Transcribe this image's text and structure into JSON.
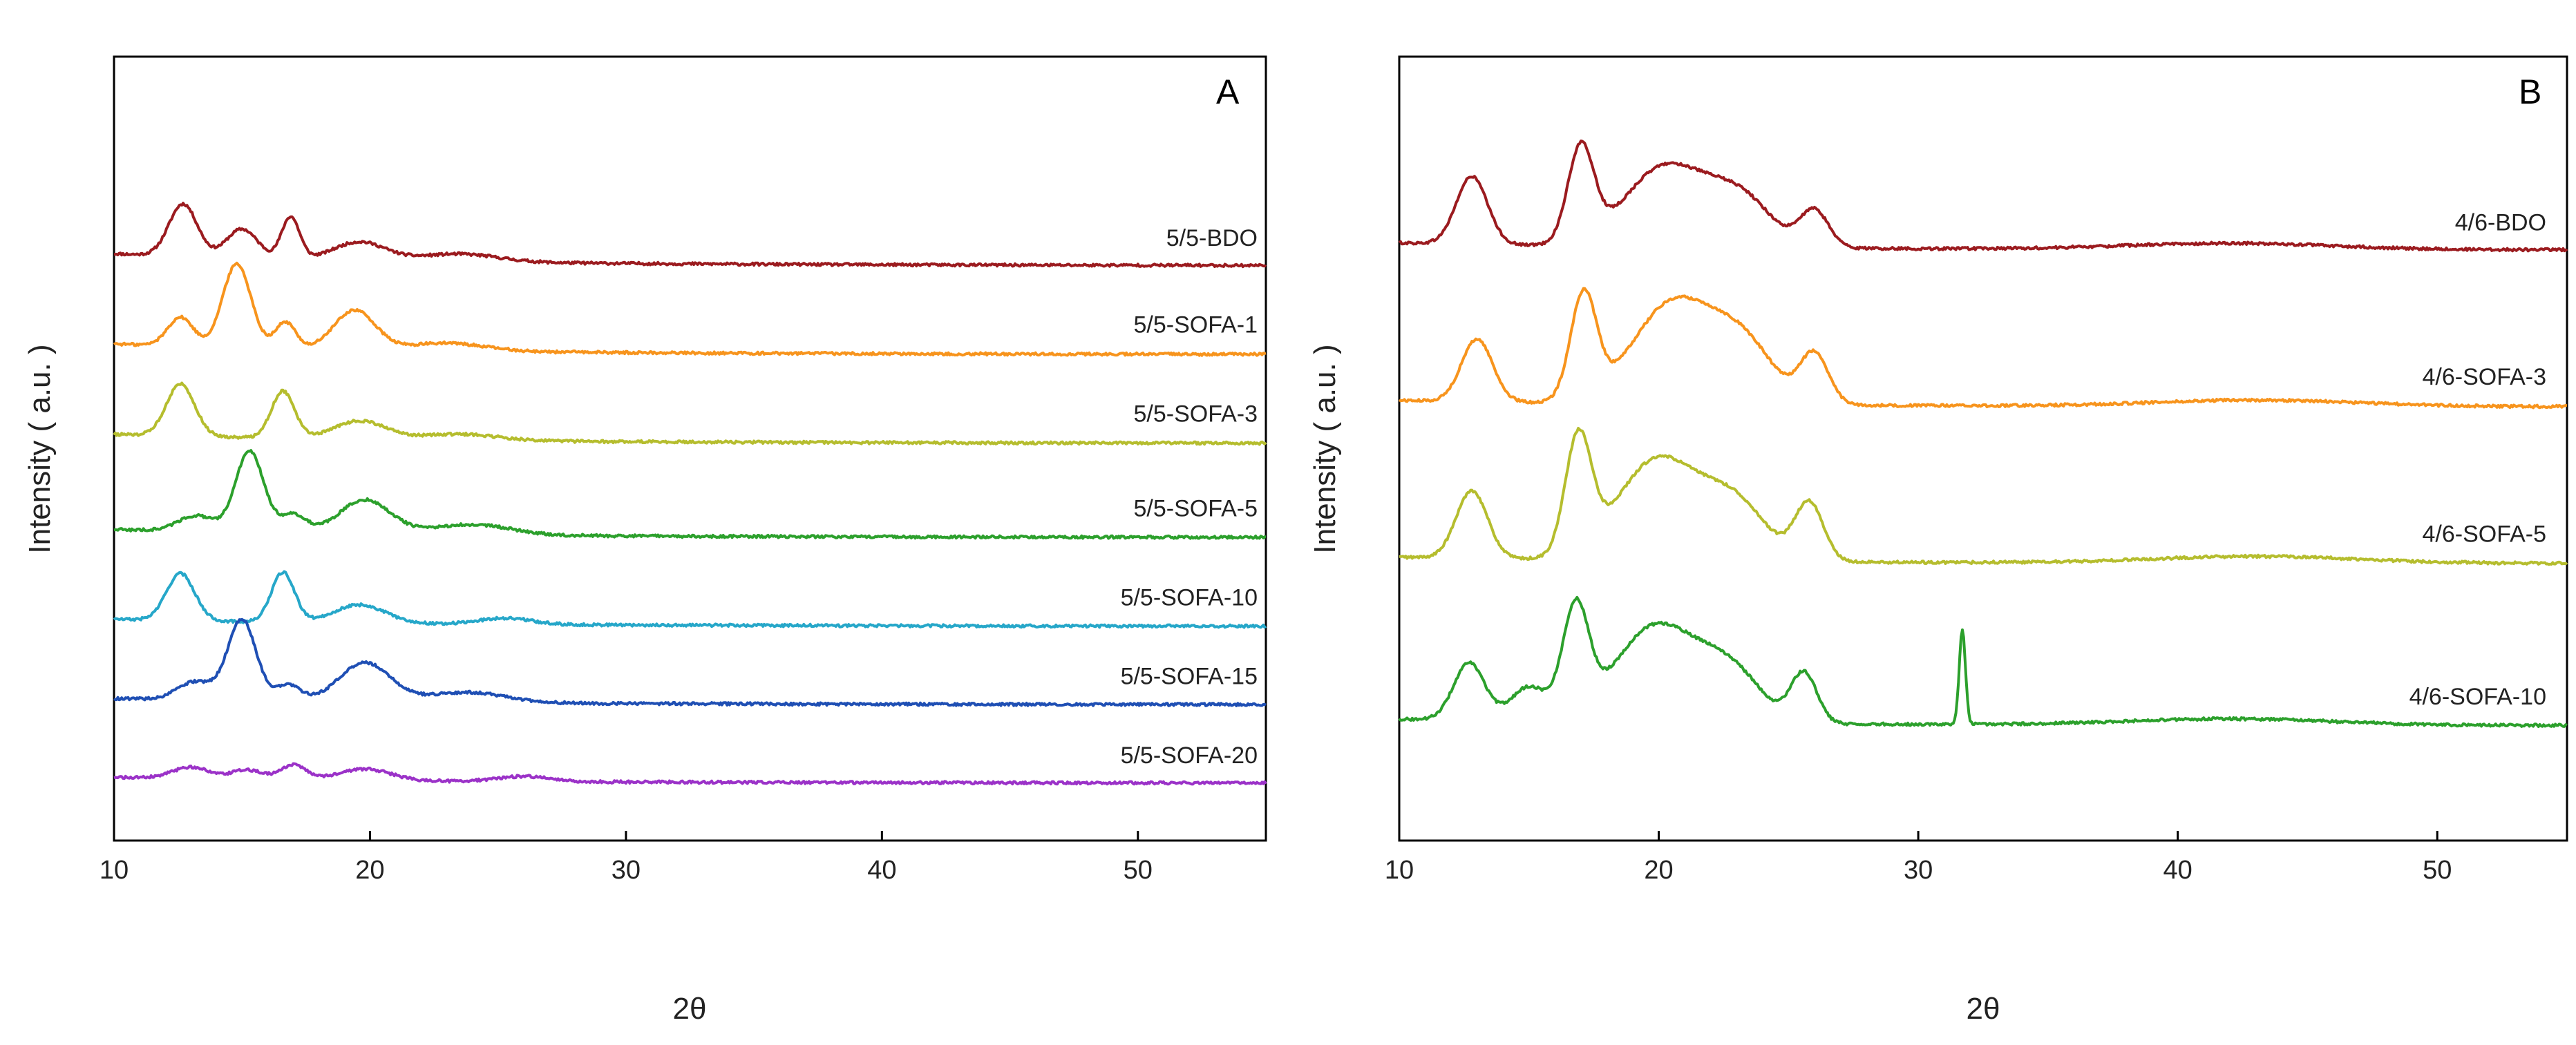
{
  "chart_data": [
    {
      "type": "line",
      "panel_label": "A",
      "xlabel": "2θ",
      "ylabel": "Intensity ( a.u. )",
      "xlim": [
        10,
        55
      ],
      "x_ticks": [
        "10",
        "20",
        "30",
        "40",
        "50"
      ],
      "y_ticks_shown": false,
      "series": [
        {
          "name": "5/5-BDO",
          "color": "#9b1b1f",
          "baseline": 0.92,
          "offset": 9.0,
          "peaks": [
            [
              12.7,
              1.0,
              0.55
            ],
            [
              15.0,
              0.55,
              0.6
            ],
            [
              16.9,
              0.8,
              0.35
            ],
            [
              19.6,
              0.35,
              1.0
            ],
            [
              23.5,
              0.15,
              1.5
            ]
          ]
        },
        {
          "name": "5/5-SOFA-1",
          "color": "#f7941d",
          "baseline": 0.82,
          "offset": 7.3,
          "peaks": [
            [
              12.6,
              0.55,
              0.5
            ],
            [
              14.8,
              1.6,
              0.55
            ],
            [
              16.7,
              0.5,
              0.4
            ],
            [
              19.4,
              0.75,
              0.8
            ],
            [
              23.0,
              0.15,
              1.5
            ]
          ]
        },
        {
          "name": "5/5-SOFA-3",
          "color": "#b5bd2e",
          "baseline": 0.7,
          "offset": 5.6,
          "peaks": [
            [
              12.6,
              1.0,
              0.55
            ],
            [
              16.6,
              0.9,
              0.45
            ],
            [
              19.6,
              0.35,
              1.0
            ],
            [
              23.5,
              0.12,
              1.5
            ]
          ]
        },
        {
          "name": "5/5-SOFA-5",
          "color": "#2ca02c",
          "baseline": 0.62,
          "offset": 3.8,
          "peaks": [
            [
              13.2,
              0.3,
              0.7
            ],
            [
              15.3,
              1.55,
              0.55
            ],
            [
              17.0,
              0.35,
              0.5
            ],
            [
              19.8,
              0.65,
              1.0
            ],
            [
              24.0,
              0.2,
              1.5
            ]
          ]
        },
        {
          "name": "5/5-SOFA-10",
          "color": "#26a7c9",
          "baseline": 0.55,
          "offset": 2.1,
          "peaks": [
            [
              12.6,
              0.9,
              0.55
            ],
            [
              16.6,
              0.95,
              0.45
            ],
            [
              19.6,
              0.35,
              1.0
            ],
            [
              25.3,
              0.12,
              1.0
            ]
          ]
        },
        {
          "name": "5/5-SOFA-15",
          "color": "#1f4fb4",
          "baseline": 0.48,
          "offset": 0.6,
          "peaks": [
            [
              13.2,
              0.35,
              0.7
            ],
            [
              15.0,
              1.55,
              0.55
            ],
            [
              16.8,
              0.3,
              0.5
            ],
            [
              19.8,
              0.75,
              1.0
            ],
            [
              23.8,
              0.2,
              1.5
            ]
          ]
        },
        {
          "name": "5/5-SOFA-20",
          "color": "#9b32c8",
          "baseline": 0.45,
          "offset": -0.9,
          "peaks": [
            [
              13.0,
              0.22,
              0.7
            ],
            [
              15.2,
              0.18,
              0.6
            ],
            [
              17.0,
              0.28,
              0.5
            ],
            [
              19.8,
              0.22,
              1.0
            ],
            [
              26.0,
              0.1,
              1.0
            ]
          ]
        }
      ]
    },
    {
      "type": "line",
      "panel_label": "B",
      "xlabel": "2θ",
      "ylabel": "Intensity ( a.u. )",
      "xlim": [
        10,
        55
      ],
      "x_ticks": [
        "10",
        "20",
        "30",
        "40",
        "50"
      ],
      "y_ticks_shown": false,
      "series": [
        {
          "name": "4/6-BDO",
          "color": "#9b1b1f",
          "baseline": 0.55,
          "offset": 9.3,
          "peaks": [
            [
              12.8,
              1.3,
              0.6
            ],
            [
              17.0,
              1.8,
              0.5
            ],
            [
              20.3,
              1.55,
              1.6
            ],
            [
              23.2,
              0.85,
              1.2
            ],
            [
              26.0,
              0.7,
              0.55
            ],
            [
              42.0,
              0.12,
              4.0
            ]
          ]
        },
        {
          "name": "4/6-SOFA-3",
          "color": "#f7941d",
          "baseline": 0.5,
          "offset": 6.3,
          "peaks": [
            [
              13.0,
              1.2,
              0.6
            ],
            [
              17.1,
              2.0,
              0.5
            ],
            [
              20.6,
              1.95,
              1.6
            ],
            [
              23.3,
              1.0,
              1.2
            ],
            [
              26.0,
              0.95,
              0.55
            ],
            [
              43.0,
              0.12,
              4.0
            ]
          ]
        },
        {
          "name": "4/6-SOFA-5",
          "color": "#b5bd2e",
          "baseline": 0.5,
          "offset": 3.3,
          "peaks": [
            [
              12.8,
              1.3,
              0.6
            ],
            [
              16.9,
              2.2,
              0.5
            ],
            [
              20.0,
              1.95,
              1.6
            ],
            [
              23.0,
              1.0,
              1.2
            ],
            [
              25.8,
              1.1,
              0.55
            ],
            [
              43.0,
              0.13,
              4.0
            ]
          ]
        },
        {
          "name": "4/6-SOFA-10",
          "color": "#2ca02c",
          "baseline": 0.5,
          "offset": 0.2,
          "peaks": [
            [
              12.7,
              1.1,
              0.6
            ],
            [
              15.0,
              0.65,
              0.7
            ],
            [
              16.8,
              2.05,
              0.5
            ],
            [
              19.9,
              1.85,
              1.6
            ],
            [
              22.8,
              0.9,
              1.2
            ],
            [
              25.6,
              0.95,
              0.5
            ],
            [
              31.7,
              1.8,
              0.12
            ],
            [
              42.0,
              0.12,
              4.0
            ]
          ]
        }
      ]
    }
  ]
}
